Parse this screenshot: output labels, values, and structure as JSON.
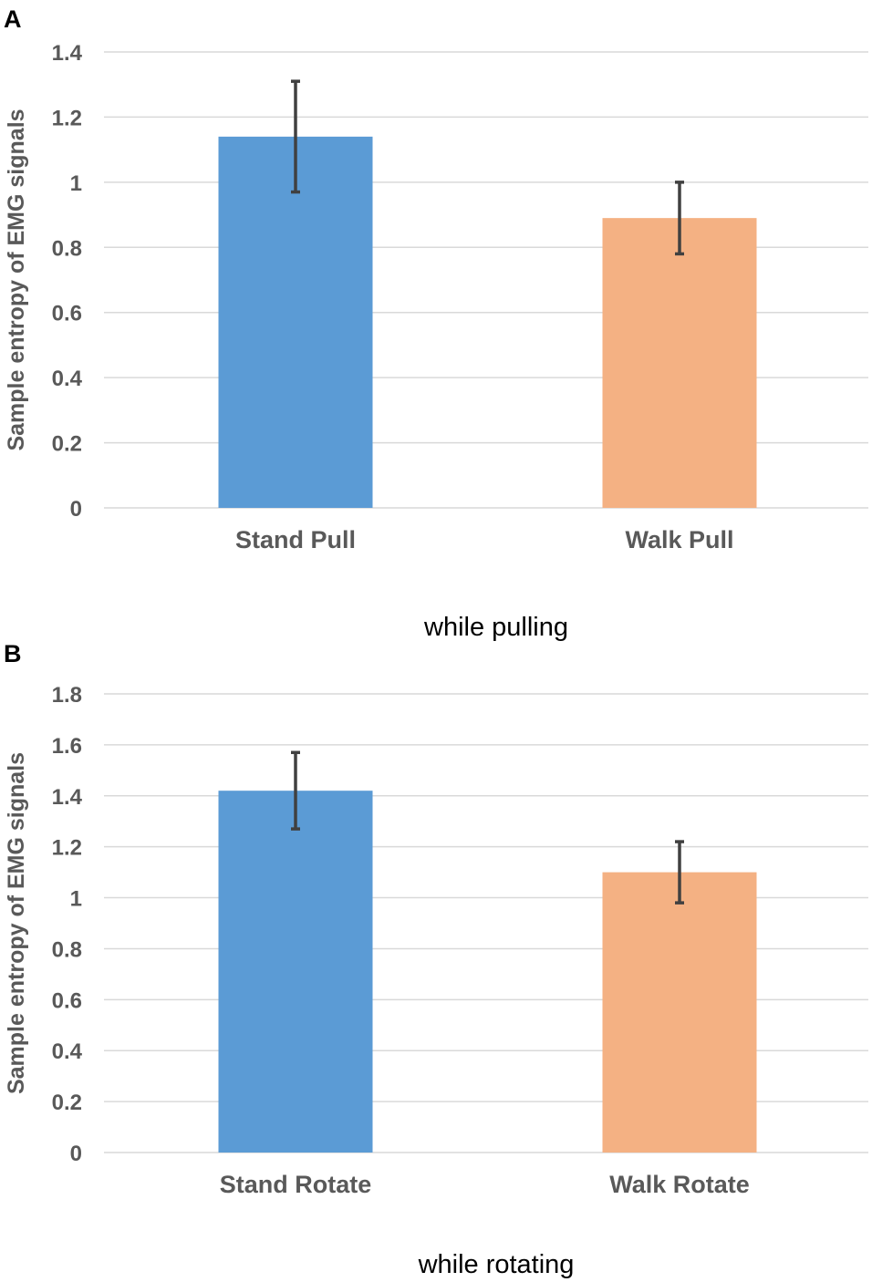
{
  "chart_data": [
    {
      "panel": "A",
      "type": "bar",
      "categories": [
        "Stand Pull",
        "Walk Pull"
      ],
      "values": [
        1.14,
        0.89
      ],
      "error_upper": [
        1.31,
        1.0
      ],
      "error_lower": [
        0.97,
        0.78
      ],
      "colors": [
        "#5b9bd5",
        "#f4b183"
      ],
      "ylabel": "Sample entropy of EMG signals",
      "ylim": [
        0,
        1.4
      ],
      "yticks": [
        0,
        0.2,
        0.4,
        0.6,
        0.8,
        1,
        1.2,
        1.4
      ],
      "ytick_labels": [
        "0",
        "0.2",
        "0.4",
        "0.6",
        "0.8",
        "1",
        "1.2",
        "1.4"
      ],
      "caption": "while pulling",
      "grid": true
    },
    {
      "panel": "B",
      "type": "bar",
      "categories": [
        "Stand Rotate",
        "Walk Rotate"
      ],
      "values": [
        1.42,
        1.1
      ],
      "error_upper": [
        1.57,
        1.22
      ],
      "error_lower": [
        1.27,
        0.98
      ],
      "colors": [
        "#5b9bd5",
        "#f4b183"
      ],
      "ylabel": "Sample entropy of EMG signals",
      "ylim": [
        0,
        1.8
      ],
      "yticks": [
        0,
        0.2,
        0.4,
        0.6,
        0.8,
        1,
        1.2,
        1.4,
        1.6,
        1.8
      ],
      "ytick_labels": [
        "0",
        "0.2",
        "0.4",
        "0.6",
        "0.8",
        "1",
        "1.2",
        "1.4",
        "1.6",
        "1.8"
      ],
      "caption": "while rotating",
      "grid": true
    }
  ]
}
